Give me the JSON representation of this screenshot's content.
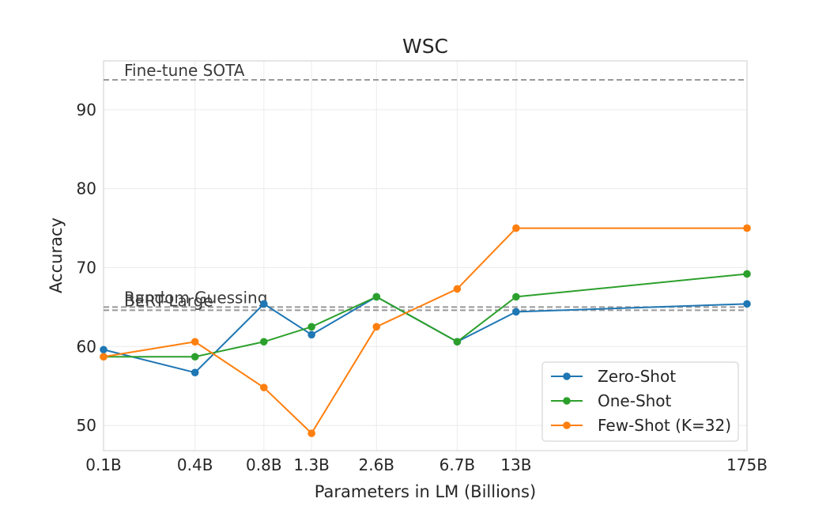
{
  "chart_data": {
    "type": "line",
    "title": "WSC",
    "xlabel": "Parameters in LM (Billions)",
    "ylabel": "Accuracy",
    "categories": [
      "0.1B",
      "0.4B",
      "0.8B",
      "1.3B",
      "2.6B",
      "6.7B",
      "13B",
      "175B"
    ],
    "x": [
      0.125,
      0.35,
      0.76,
      1.3,
      2.7,
      6.7,
      13,
      175
    ],
    "x_scale": "log",
    "ylim": [
      46.8,
      96.2
    ],
    "yticks": [
      50,
      60,
      70,
      80,
      90
    ],
    "grid": true,
    "series": [
      {
        "name": "Zero-Shot",
        "color": "#1f77b4",
        "values": [
          59.6,
          56.7,
          65.4,
          61.5,
          66.3,
          60.6,
          64.4,
          65.4
        ]
      },
      {
        "name": "One-Shot",
        "color": "#2ca02c",
        "values": [
          58.7,
          58.7,
          60.6,
          62.5,
          66.3,
          60.6,
          66.3,
          69.2
        ]
      },
      {
        "name": "Few-Shot (K=32)",
        "color": "#ff7f0e",
        "values": [
          58.7,
          60.6,
          54.8,
          49.0,
          62.5,
          67.3,
          75.0,
          75.0
        ]
      }
    ],
    "reference_lines": [
      {
        "label": "Fine-tune SOTA",
        "value": 93.8
      },
      {
        "label": "Random Guessing",
        "value": 65.0
      },
      {
        "label": "BERT-Large",
        "value": 64.6
      }
    ],
    "legend_position": "lower-right"
  }
}
